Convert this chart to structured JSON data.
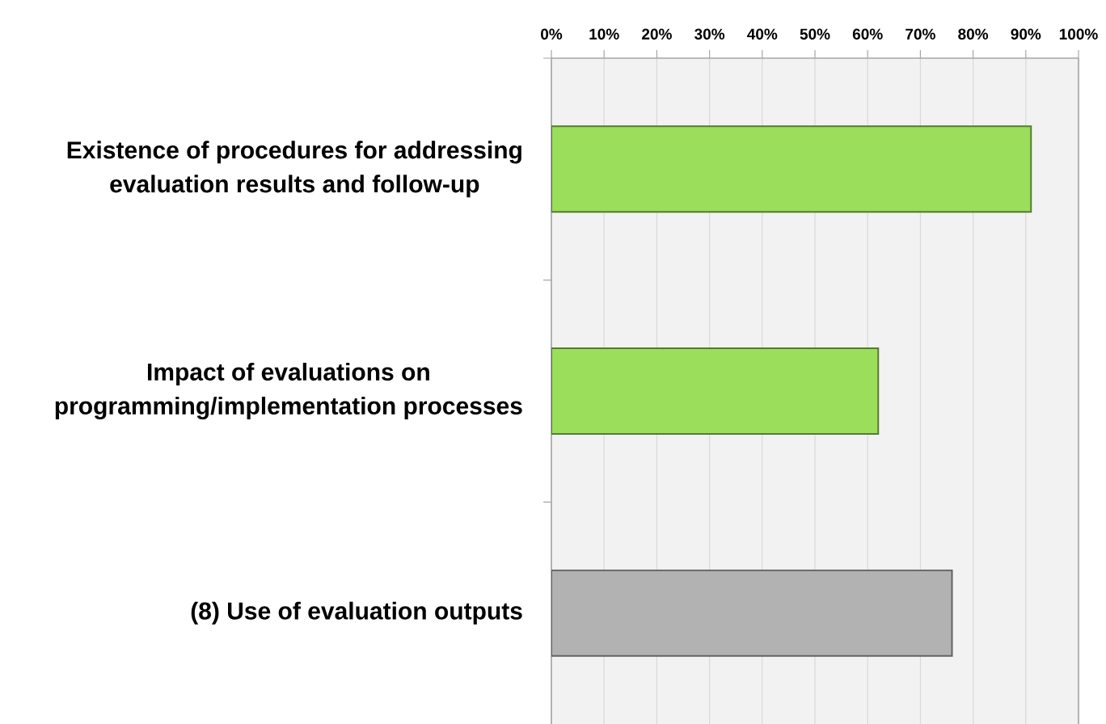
{
  "chart_data": {
    "type": "bar",
    "orientation": "horizontal",
    "categories": [
      "Existence of procedures for addressing evaluation results and follow-up",
      "Impact of evaluations on programming/implementation processes",
      "(8) Use of evaluation outputs"
    ],
    "values": [
      91,
      62,
      76
    ],
    "colors": [
      "#9bde5b",
      "#9bde5b",
      "#b2b2b2"
    ],
    "xlim": [
      0,
      100
    ],
    "xticks": [
      {
        "value": 0,
        "label": "0%"
      },
      {
        "value": 10,
        "label": "10%"
      },
      {
        "value": 20,
        "label": "20%"
      },
      {
        "value": 30,
        "label": "30%"
      },
      {
        "value": 40,
        "label": "40%"
      },
      {
        "value": 50,
        "label": "50%"
      },
      {
        "value": 60,
        "label": "60%"
      },
      {
        "value": 70,
        "label": "70%"
      },
      {
        "value": 80,
        "label": "80%"
      },
      {
        "value": 90,
        "label": "90%"
      },
      {
        "value": 100,
        "label": "100%"
      }
    ],
    "grid": "x"
  }
}
